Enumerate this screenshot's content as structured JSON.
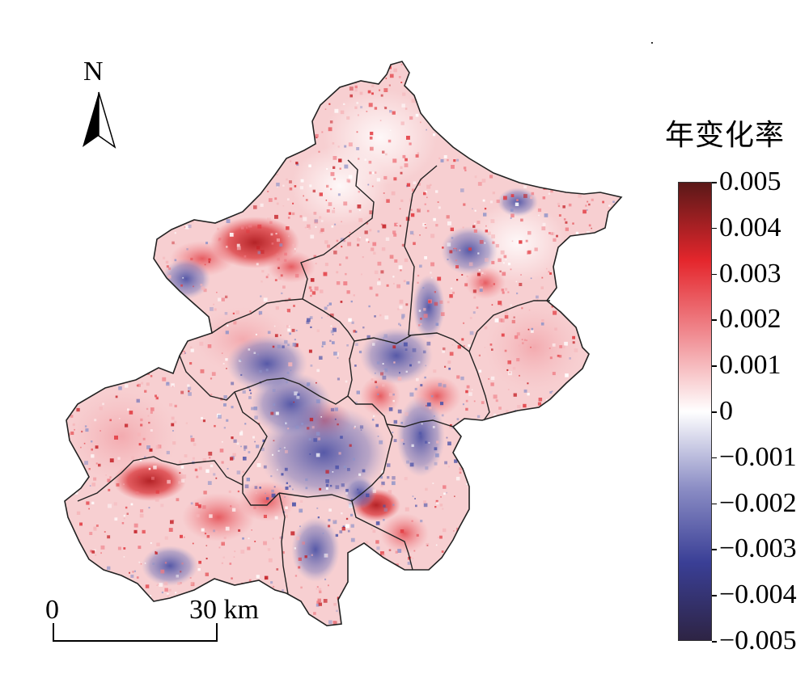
{
  "north_arrow": {
    "label": "N"
  },
  "legend": {
    "title": "年变化率",
    "labels": [
      "0.005",
      "0.004",
      "0.003",
      "0.002",
      "0.001",
      "0",
      "−0.001",
      "−0.002",
      "−0.003",
      "−0.004",
      "−0.005"
    ],
    "range": [
      -0.005,
      0.005
    ],
    "colors": [
      "#2e2444",
      "#3a3f96",
      "#8a8cc4",
      "#ffffff",
      "#f08a90",
      "#e4262c",
      "#5a1818"
    ]
  },
  "scale_bar": {
    "start_label": "0",
    "end_label": "30 km"
  },
  "colors": {
    "positive": "#e03030",
    "negative": "#3a44a0",
    "neutral": "#ffffff",
    "border": "#222222"
  }
}
